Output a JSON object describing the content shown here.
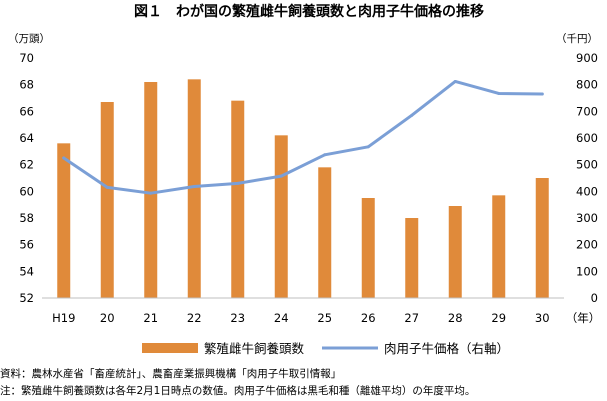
{
  "chart_data": {
    "type": "bar",
    "title": "図１　わが国の繁殖雌牛飼養頭数と肉用子牛価格の推移",
    "left_unit": "（万頭）",
    "right_unit": "（千円）",
    "x_unit": "（年）",
    "categories": [
      "H19",
      "20",
      "21",
      "22",
      "23",
      "24",
      "25",
      "26",
      "27",
      "28",
      "29",
      "30"
    ],
    "yticks_left": [
      "52",
      "54",
      "56",
      "58",
      "60",
      "62",
      "64",
      "66",
      "68",
      "70"
    ],
    "yticks_right": [
      "0",
      "100",
      "200",
      "300",
      "400",
      "500",
      "600",
      "700",
      "800",
      "900"
    ],
    "ylim_left": [
      52,
      70
    ],
    "ylim_right": [
      0,
      900
    ],
    "grid": false,
    "legend_position": "bottom",
    "series": [
      {
        "name": "繁殖雌牛飼養頭数",
        "type": "bar",
        "axis": "left",
        "color": "#e08a3a",
        "values": [
          63.6,
          66.7,
          68.2,
          68.4,
          66.8,
          64.2,
          61.8,
          59.5,
          58.0,
          58.9,
          59.7,
          61.0
        ]
      },
      {
        "name": "肉用子牛価格（右軸）",
        "type": "line",
        "axis": "right",
        "color": "#7b9fd6",
        "values": [
          525,
          415,
          393,
          418,
          430,
          457,
          537,
          567,
          685,
          812,
          767,
          765
        ]
      }
    ]
  },
  "notes": {
    "source": "資料：農林水産省「畜産統計」、農畜産業振興機構「肉用子牛取引情報」",
    "note": "注：繁殖雌牛飼養頭数は各年2月1日時点の数値。肉用子牛価格は黒毛和種（離雄平均）の年度平均。"
  }
}
